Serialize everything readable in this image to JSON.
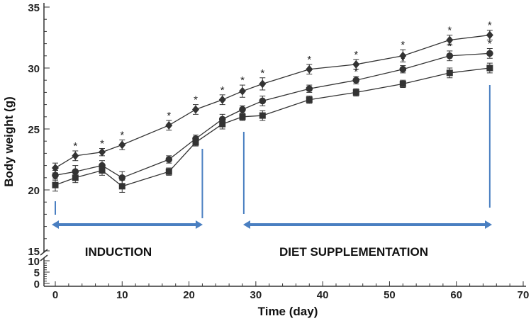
{
  "chart_data": {
    "type": "line",
    "title": "",
    "xlabel": "Time (day)",
    "ylabel": "Body weight (g)",
    "xlim": [
      0,
      70
    ],
    "ylim_upper": [
      15,
      35
    ],
    "ylim_lower": [
      0,
      10
    ],
    "x_ticks": [
      "0",
      "10",
      "20",
      "30",
      "40",
      "50",
      "60",
      "70"
    ],
    "y_ticks_upper": [
      "15",
      "20",
      "25",
      "30",
      "35"
    ],
    "y_ticks_lower": [
      "0",
      "5",
      "10"
    ],
    "x": [
      0,
      3,
      7,
      10,
      17,
      21,
      25,
      28,
      31,
      38,
      45,
      52,
      59,
      65
    ],
    "series": [
      {
        "name": "diamond",
        "marker": "diamond",
        "values": [
          21.8,
          22.8,
          23.1,
          23.7,
          25.3,
          26.6,
          27.4,
          28.1,
          28.7,
          29.9,
          30.3,
          31.0,
          32.3,
          32.7
        ],
        "errors": [
          0.4,
          0.4,
          0.3,
          0.4,
          0.4,
          0.4,
          0.4,
          0.5,
          0.5,
          0.4,
          0.4,
          0.5,
          0.4,
          0.4
        ],
        "significant": [
          false,
          true,
          true,
          true,
          true,
          true,
          true,
          true,
          true,
          true,
          true,
          true,
          true,
          true
        ]
      },
      {
        "name": "circle",
        "marker": "circle",
        "values": [
          21.2,
          21.5,
          22.0,
          21.0,
          22.5,
          24.2,
          25.8,
          26.6,
          27.3,
          28.3,
          29.0,
          29.9,
          31.0,
          31.2
        ],
        "errors": [
          0.4,
          0.5,
          0.4,
          0.5,
          0.3,
          0.3,
          0.4,
          0.3,
          0.4,
          0.3,
          0.3,
          0.3,
          0.4,
          0.4
        ],
        "significant": [
          false,
          false,
          false,
          false,
          false,
          false,
          false,
          false,
          false,
          false,
          true,
          true,
          true,
          true
        ]
      },
      {
        "name": "square",
        "marker": "square",
        "values": [
          20.4,
          21.0,
          21.6,
          20.3,
          21.5,
          23.9,
          25.4,
          26.0,
          26.1,
          27.4,
          28.0,
          28.7,
          29.6,
          30.0
        ],
        "errors": [
          0.5,
          0.4,
          0.4,
          0.5,
          0.3,
          0.3,
          0.4,
          0.3,
          0.4,
          0.3,
          0.3,
          0.3,
          0.4,
          0.4
        ],
        "significant": [
          false,
          false,
          false,
          false,
          false,
          false,
          false,
          false,
          false,
          false,
          false,
          false,
          false,
          false
        ]
      }
    ],
    "annotations": {
      "significance_marker": "*",
      "phases": [
        {
          "label": "INDUCTION",
          "start_day": 0,
          "end_day": 21
        },
        {
          "label": "DIET SUPPLEMENTATION",
          "start_day": 28,
          "end_day": 65
        }
      ]
    },
    "colors": {
      "series": "#333333",
      "arrows": "#4a7fc1"
    },
    "grid": false,
    "axis_break": true
  }
}
